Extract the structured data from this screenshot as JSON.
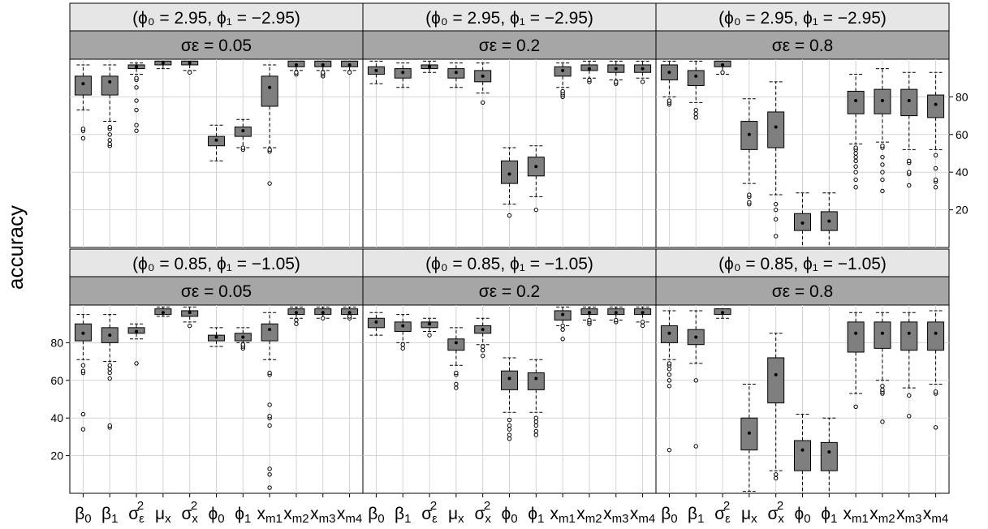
{
  "chart_data": {
    "type": "boxplot",
    "ylabel": "accuracy",
    "ylim": [
      0,
      100
    ],
    "yticks": [
      20,
      40,
      60,
      80
    ],
    "grid": true,
    "params": [
      [
        "β",
        "0",
        ""
      ],
      [
        "β",
        "1",
        ""
      ],
      [
        "σ",
        "ε",
        "2"
      ],
      [
        "μ",
        "x",
        ""
      ],
      [
        "σ",
        "x",
        "2"
      ],
      [
        "ϕ",
        "0",
        ""
      ],
      [
        "ϕ",
        "1",
        ""
      ],
      [
        "x",
        "m1",
        ""
      ],
      [
        "x",
        "m2",
        ""
      ],
      [
        "x",
        "m3",
        ""
      ],
      [
        "x",
        "m4",
        ""
      ]
    ],
    "panels": [
      {
        "row": 0,
        "col": 0,
        "strip_top": "(ϕ₀ = 2.95, ϕ₁ = −2.95)",
        "strip_bottom": "σε = 0.05",
        "boxes": [
          {
            "w": [
              73,
              97
            ],
            "q": [
              81,
              91
            ],
            "m": 87,
            "o": [
              58,
              62,
              63
            ]
          },
          {
            "w": [
              67,
              97
            ],
            "q": [
              81,
              91
            ],
            "m": 88,
            "o": [
              54,
              55,
              57,
              60,
              63,
              64
            ]
          },
          {
            "w": [
              92,
              98
            ],
            "q": [
              95,
              97
            ],
            "m": 96,
            "o": [
              62,
              65,
              73,
              78,
              85,
              89,
              90
            ]
          },
          {
            "w": [
              95,
              99
            ],
            "q": [
              97,
              99
            ],
            "m": 98,
            "o": []
          },
          {
            "w": [
              94,
              99
            ],
            "q": [
              97,
              99
            ],
            "m": 98,
            "o": [
              93
            ]
          },
          {
            "w": [
              46,
              65
            ],
            "q": [
              54,
              59
            ],
            "m": 57,
            "o": []
          },
          {
            "w": [
              53,
              68
            ],
            "q": [
              59,
              64
            ],
            "m": 62,
            "o": [
              52,
              53
            ]
          },
          {
            "w": [
              53,
              97
            ],
            "q": [
              75,
              91
            ],
            "m": 85,
            "o": [
              34,
              51,
              52
            ]
          },
          {
            "w": [
              94,
              99
            ],
            "q": [
              96,
              99
            ],
            "m": 97,
            "o": [
              92,
              93
            ]
          },
          {
            "w": [
              94,
              99
            ],
            "q": [
              96,
              99
            ],
            "m": 97,
            "o": [
              91,
              92,
              93
            ]
          },
          {
            "w": [
              94,
              99
            ],
            "q": [
              96,
              99
            ],
            "m": 97,
            "o": [
              93
            ]
          }
        ]
      },
      {
        "row": 0,
        "col": 1,
        "strip_top": "(ϕ₀ = 2.95, ϕ₁ = −2.95)",
        "strip_bottom": "σε = 0.2",
        "boxes": [
          {
            "w": [
              87,
              99
            ],
            "q": [
              92,
              96
            ],
            "m": 94,
            "o": []
          },
          {
            "w": [
              85,
              98
            ],
            "q": [
              90,
              95
            ],
            "m": 93,
            "o": []
          },
          {
            "w": [
              93,
              99
            ],
            "q": [
              95,
              97
            ],
            "m": 96,
            "o": []
          },
          {
            "w": [
              85,
              98
            ],
            "q": [
              90,
              95
            ],
            "m": 93,
            "o": []
          },
          {
            "w": [
              82,
              98
            ],
            "q": [
              88,
              94
            ],
            "m": 91,
            "o": [
              77
            ]
          },
          {
            "w": [
              23,
              53
            ],
            "q": [
              34,
              46
            ],
            "m": 39,
            "o": [
              17
            ]
          },
          {
            "w": [
              27,
              54
            ],
            "q": [
              38,
              48
            ],
            "m": 43,
            "o": [
              20
            ]
          },
          {
            "w": [
              85,
              98
            ],
            "q": [
              91,
              96
            ],
            "m": 94,
            "o": [
              80,
              81,
              82,
              83
            ]
          },
          {
            "w": [
              90,
              99
            ],
            "q": [
              94,
              97
            ],
            "m": 95,
            "o": [
              88,
              89
            ]
          },
          {
            "w": [
              89,
              99
            ],
            "q": [
              93,
              97
            ],
            "m": 95,
            "o": [
              87,
              88
            ]
          },
          {
            "w": [
              90,
              99
            ],
            "q": [
              93,
              97
            ],
            "m": 95,
            "o": [
              88
            ]
          }
        ]
      },
      {
        "row": 0,
        "col": 2,
        "strip_top": "(ϕ₀ = 2.95, ϕ₁ = −2.95)",
        "strip_bottom": "σε = 0.8",
        "boxes": [
          {
            "w": [
              80,
              99
            ],
            "q": [
              89,
              97
            ],
            "m": 93,
            "o": [
              76,
              77,
              78
            ]
          },
          {
            "w": [
              77,
              99
            ],
            "q": [
              86,
              94
            ],
            "m": 91,
            "o": [
              69,
              71,
              73
            ]
          },
          {
            "w": [
              92,
              99
            ],
            "q": [
              96,
              99
            ],
            "m": 97,
            "o": [
              93
            ]
          },
          {
            "w": [
              34,
              79
            ],
            "q": [
              52,
              67
            ],
            "m": 60,
            "o": [
              23,
              24,
              27,
              28
            ]
          },
          {
            "w": [
              28,
              88
            ],
            "q": [
              53,
              72
            ],
            "m": 64,
            "o": [
              6,
              15,
              20,
              23
            ]
          },
          {
            "w": [
              0,
              29
            ],
            "q": [
              9,
              18
            ],
            "m": 13,
            "o": []
          },
          {
            "w": [
              0,
              29
            ],
            "q": [
              9,
              19
            ],
            "m": 14,
            "o": []
          },
          {
            "w": [
              55,
              92
            ],
            "q": [
              71,
              83
            ],
            "m": 78,
            "o": [
              32,
              36,
              40,
              43,
              46,
              48,
              50,
              52,
              53
            ]
          },
          {
            "w": [
              56,
              95
            ],
            "q": [
              71,
              84
            ],
            "m": 78,
            "o": [
              30,
              36,
              40,
              44,
              48,
              53,
              54
            ]
          },
          {
            "w": [
              52,
              93
            ],
            "q": [
              70,
              84
            ],
            "m": 78,
            "o": [
              33,
              39,
              40,
              45,
              46
            ]
          },
          {
            "w": [
              52,
              93
            ],
            "q": [
              69,
              81
            ],
            "m": 76,
            "o": [
              32,
              35,
              36,
              42,
              49
            ]
          }
        ]
      },
      {
        "row": 1,
        "col": 0,
        "strip_top": "(ϕ₀ = 0.85, ϕ₁ = −1.05)",
        "strip_bottom": "σε = 0.05",
        "boxes": [
          {
            "w": [
              71,
              95
            ],
            "q": [
              81,
              90
            ],
            "m": 85,
            "o": [
              34,
              42,
              64,
              65,
              68
            ]
          },
          {
            "w": [
              70,
              95
            ],
            "q": [
              80,
              88
            ],
            "m": 84,
            "o": [
              35,
              36,
              61,
              64,
              66,
              68
            ]
          },
          {
            "w": [
              82,
              90
            ],
            "q": [
              85,
              88
            ],
            "m": 86,
            "o": [
              69
            ]
          },
          {
            "w": [
              94,
              99
            ],
            "q": [
              95,
              98
            ],
            "m": 96,
            "o": []
          },
          {
            "w": [
              91,
              99
            ],
            "q": [
              94,
              97
            ],
            "m": 96,
            "o": [
              89
            ]
          },
          {
            "w": [
              78,
              88
            ],
            "q": [
              81,
              84
            ],
            "m": 83,
            "o": []
          },
          {
            "w": [
              80,
              88
            ],
            "q": [
              81,
              85
            ],
            "m": 83,
            "o": [
              77,
              78,
              79
            ]
          },
          {
            "w": [
              71,
              96
            ],
            "q": [
              81,
              90
            ],
            "m": 87,
            "o": [
              3,
              10,
              13,
              36,
              40,
              41,
              47,
              63,
              64
            ]
          },
          {
            "w": [
              93,
              99
            ],
            "q": [
              95,
              98
            ],
            "m": 96,
            "o": [
              90,
              92
            ]
          },
          {
            "w": [
              93,
              99
            ],
            "q": [
              95,
              98
            ],
            "m": 96,
            "o": [
              93
            ]
          },
          {
            "w": [
              93,
              99
            ],
            "q": [
              95,
              98
            ],
            "m": 96,
            "o": [
              93,
              94
            ]
          }
        ]
      },
      {
        "row": 1,
        "col": 1,
        "strip_top": "(ϕ₀ = 0.85, ϕ₁ = −1.05)",
        "strip_bottom": "σε = 0.2",
        "boxes": [
          {
            "w": [
              84,
              96
            ],
            "q": [
              88,
              93
            ],
            "m": 91,
            "o": []
          },
          {
            "w": [
              80,
              95
            ],
            "q": [
              86,
              91
            ],
            "m": 89,
            "o": [
              77,
              79
            ]
          },
          {
            "w": [
              86,
              93
            ],
            "q": [
              88,
              91
            ],
            "m": 90,
            "o": [
              84
            ]
          },
          {
            "w": [
              68,
              88
            ],
            "q": [
              76,
              82
            ],
            "m": 80,
            "o": [
              56,
              58,
              63,
              64
            ]
          },
          {
            "w": [
              79,
              93
            ],
            "q": [
              85,
              89
            ],
            "m": 87,
            "o": [
              73,
              76,
              78
            ]
          },
          {
            "w": [
              43,
              72
            ],
            "q": [
              55,
              65
            ],
            "m": 61,
            "o": [
              29,
              31,
              34,
              36,
              39
            ]
          },
          {
            "w": [
              43,
              71
            ],
            "q": [
              55,
              64
            ],
            "m": 61,
            "o": [
              31,
              33,
              36,
              38,
              40
            ]
          },
          {
            "w": [
              89,
              99
            ],
            "q": [
              92,
              97
            ],
            "m": 95,
            "o": [
              82,
              87,
              89
            ]
          },
          {
            "w": [
              92,
              99
            ],
            "q": [
              95,
              98
            ],
            "m": 96,
            "o": [
              90,
              91,
              92
            ]
          },
          {
            "w": [
              92,
              99
            ],
            "q": [
              95,
              98
            ],
            "m": 96,
            "o": [
              91,
              92
            ]
          },
          {
            "w": [
              91,
              99
            ],
            "q": [
              95,
              98
            ],
            "m": 96,
            "o": [
              89,
              91
            ]
          }
        ]
      },
      {
        "row": 1,
        "col": 2,
        "strip_top": "(ϕ₀ = 0.85, ϕ₁ = −1.05)",
        "strip_bottom": "σε = 0.8",
        "boxes": [
          {
            "w": [
              71,
              97
            ],
            "q": [
              80,
              89
            ],
            "m": 85,
            "o": [
              23,
              57,
              60,
              63,
              66,
              68,
              69
            ]
          },
          {
            "w": [
              69,
              97
            ],
            "q": [
              79,
              87
            ],
            "m": 83,
            "o": [
              25,
              60
            ]
          },
          {
            "w": [
              93,
              98
            ],
            "q": [
              95,
              98
            ],
            "m": 96,
            "o": []
          },
          {
            "w": [
              1,
              58
            ],
            "q": [
              23,
              40
            ],
            "m": 32,
            "o": []
          },
          {
            "w": [
              12,
              85
            ],
            "q": [
              48,
              72
            ],
            "m": 63,
            "o": [
              8,
              10
            ]
          },
          {
            "w": [
              0,
              42
            ],
            "q": [
              12,
              28
            ],
            "m": 23,
            "o": []
          },
          {
            "w": [
              0,
              40
            ],
            "q": [
              12,
              27
            ],
            "m": 22,
            "o": []
          },
          {
            "w": [
              53,
              96
            ],
            "q": [
              75,
              91
            ],
            "m": 85,
            "o": [
              46
            ]
          },
          {
            "w": [
              60,
              96
            ],
            "q": [
              77,
              91
            ],
            "m": 85,
            "o": [
              38,
              53,
              54,
              55,
              57
            ]
          },
          {
            "w": [
              56,
              96
            ],
            "q": [
              76,
              91
            ],
            "m": 85,
            "o": [
              41,
              52
            ]
          },
          {
            "w": [
              58,
              97
            ],
            "q": [
              76,
              91
            ],
            "m": 85,
            "o": [
              35,
              53,
              54
            ]
          }
        ]
      }
    ]
  }
}
